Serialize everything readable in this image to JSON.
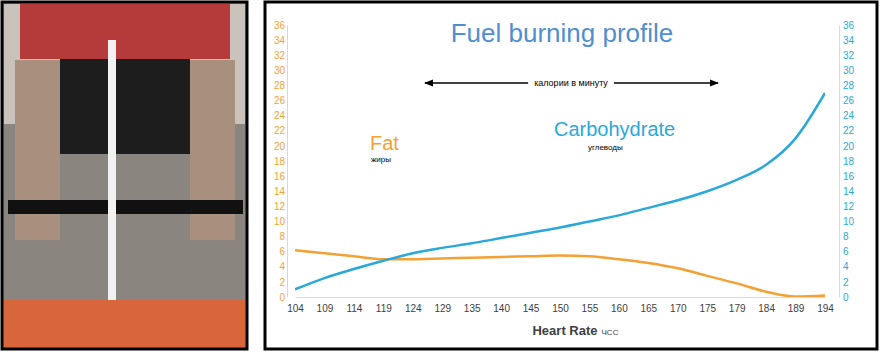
{
  "chart_data": {
    "type": "line",
    "title": "Fuel burning profile",
    "x_label": "Heart Rate",
    "annotations": [
      "калории в минуту",
      "жиры",
      "углеводы",
      "ЧСС"
    ],
    "categories": [
      "104",
      "109",
      "114",
      "119",
      "124",
      "129",
      "135",
      "140",
      "145",
      "150",
      "155",
      "160",
      "165",
      "170",
      "175",
      "179",
      "184",
      "189",
      "194"
    ],
    "series": [
      {
        "name": "Fat",
        "color": "#f5a033",
        "line_style": "solid",
        "marker": "none",
        "values": [
          6.2,
          5.8,
          5.4,
          5.0,
          5.0,
          5.1,
          5.2,
          5.3,
          5.4,
          5.5,
          5.4,
          5.0,
          4.5,
          3.8,
          2.8,
          1.8,
          0.7,
          0.05,
          0.2
        ]
      },
      {
        "name": "Carbohydrate",
        "color": "#2aa8dc",
        "line_style": "solid",
        "marker": "none",
        "axis": "y2",
        "values": [
          1.0,
          2.5,
          3.7,
          4.8,
          5.8,
          6.5,
          7.1,
          7.8,
          8.5,
          9.2,
          10.0,
          10.8,
          11.8,
          12.8,
          14.0,
          15.5,
          17.5,
          21.0,
          27.0
        ]
      }
    ],
    "ylim": [
      0,
      36
    ],
    "yticks": [
      0,
      2,
      4,
      6,
      8,
      10,
      12,
      14,
      16,
      18,
      20,
      22,
      24,
      26,
      28,
      30,
      32,
      34,
      36
    ],
    "y2lim": [
      0,
      36
    ],
    "y2ticks": [
      0,
      2,
      4,
      6,
      8,
      10,
      12,
      14,
      16,
      18,
      20,
      22,
      24,
      26,
      28,
      30,
      32,
      34,
      36
    ],
    "grid": false
  }
}
